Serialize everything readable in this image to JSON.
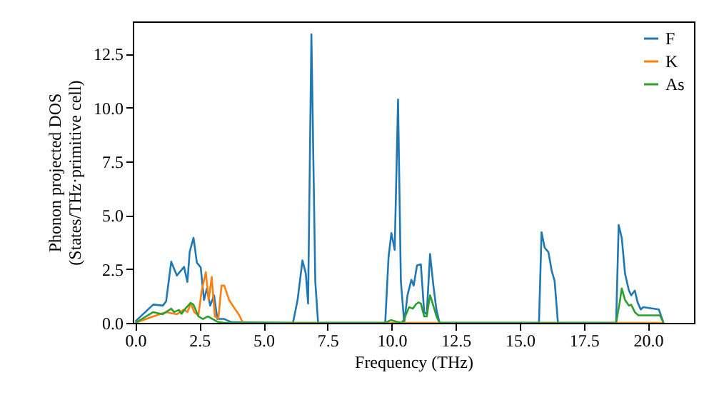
{
  "chart_data": {
    "type": "line",
    "xlabel": "Frequency (THz)",
    "ylabel": "Phonon projected DOS\n(States/THz·primitive cell)",
    "xlim": [
      -0.1,
      21.8
    ],
    "ylim": [
      0,
      14
    ],
    "xticks": [
      {
        "value": 0,
        "label": "0.0"
      },
      2.5,
      {
        "value": 5,
        "label": "5.0"
      },
      7.5,
      {
        "value": 10,
        "label": "10.0"
      },
      12.5,
      {
        "value": 15,
        "label": "15.0"
      },
      17.5,
      {
        "value": 20,
        "label": "20.0"
      }
    ],
    "yticks": [
      {
        "value": 0,
        "label": "0.0"
      },
      2.5,
      {
        "value": 5,
        "label": "5.0"
      },
      7.5,
      {
        "value": 10,
        "label": "10.0"
      },
      12.5
    ],
    "grid": false,
    "legend": "top right",
    "marker": "none",
    "line_style": "solid",
    "series": [
      {
        "name": "F",
        "color": "#1f77b4",
        "x": [
          0,
          0.7,
          1.07,
          1.2,
          1.4,
          1.62,
          1.9,
          2.03,
          2.12,
          2.27,
          2.4,
          2.55,
          2.68,
          2.79,
          2.92,
          3.07,
          3.2,
          3.47,
          3.75,
          6.15,
          6.33,
          6.52,
          6.65,
          6.74,
          6.87,
          7.02,
          7.13,
          9.75,
          9.88,
          9.99,
          10.12,
          10.25,
          10.36,
          10.49,
          10.62,
          10.77,
          10.86,
          10.99,
          11.14,
          11.27,
          11.37,
          11.5,
          11.63,
          11.75,
          11.87,
          15.75,
          15.85,
          15.97,
          16.12,
          16.25,
          16.36,
          16.49,
          18.76,
          18.86,
          18.98,
          19.11,
          19.26,
          19.35,
          19.49,
          19.6,
          19.72,
          19.82,
          20.43,
          20.61
        ],
        "values": [
          0.07,
          0.85,
          0.8,
          1.0,
          2.84,
          2.2,
          2.6,
          1.9,
          3.3,
          3.95,
          2.8,
          2.57,
          1.06,
          1.6,
          0.8,
          1.28,
          0.18,
          0.18,
          0.03,
          0,
          1.06,
          2.9,
          2.3,
          0.9,
          13.4,
          1.95,
          0,
          0,
          3.06,
          4.17,
          3.39,
          10.37,
          1.95,
          0,
          1.28,
          2.0,
          1.73,
          2.66,
          2.72,
          0.5,
          0.4,
          3.2,
          1.73,
          0.6,
          0,
          0,
          4.21,
          3.5,
          3.28,
          2.4,
          1.95,
          0,
          0,
          4.54,
          3.95,
          2.28,
          1.5,
          1.28,
          1.5,
          0.95,
          0.62,
          0.73,
          0.62,
          0
        ]
      },
      {
        "name": "K",
        "color": "#ff7f0e",
        "x": [
          0,
          0.7,
          1.2,
          1.62,
          1.9,
          2.03,
          2.16,
          2.3,
          2.46,
          2.59,
          2.75,
          2.86,
          2.98,
          3.1,
          3.24,
          3.36,
          3.47,
          3.66,
          3.84,
          4.03,
          4.2,
          20.61
        ],
        "values": [
          0,
          0.3,
          0.5,
          0.4,
          0.62,
          0.5,
          0.9,
          0.5,
          0.35,
          1.5,
          2.35,
          1.06,
          2.13,
          0.3,
          0.2,
          1.73,
          1.73,
          1.06,
          0.73,
          0.4,
          0,
          0
        ]
      },
      {
        "name": "As",
        "color": "#2ca02c",
        "x": [
          0,
          0.7,
          1.07,
          1.4,
          1.51,
          1.7,
          1.8,
          1.98,
          2.16,
          2.27,
          2.46,
          2.64,
          2.83,
          3.01,
          3.2,
          3.47,
          9.75,
          9.97,
          10.2,
          10.4,
          10.49,
          10.68,
          10.83,
          10.96,
          11.05,
          11.14,
          11.27,
          11.37,
          11.5,
          11.59,
          11.75,
          11.87,
          18.76,
          18.9,
          18.98,
          19.11,
          19.26,
          19.35,
          19.49,
          19.63,
          19.82,
          20.47,
          20.61
        ],
        "values": [
          0,
          0.5,
          0.4,
          0.66,
          0.5,
          0.6,
          0.42,
          0.7,
          0.93,
          0.84,
          0.3,
          0.18,
          0.3,
          0.18,
          0.05,
          0,
          0,
          0.13,
          0.05,
          0,
          0.18,
          0.73,
          0.66,
          0.88,
          0.95,
          0.9,
          0.3,
          0.3,
          1.28,
          0.95,
          0.3,
          0,
          0,
          0.95,
          1.6,
          1.06,
          0.8,
          0.84,
          0.5,
          0.35,
          0.35,
          0.35,
          0
        ]
      }
    ]
  }
}
